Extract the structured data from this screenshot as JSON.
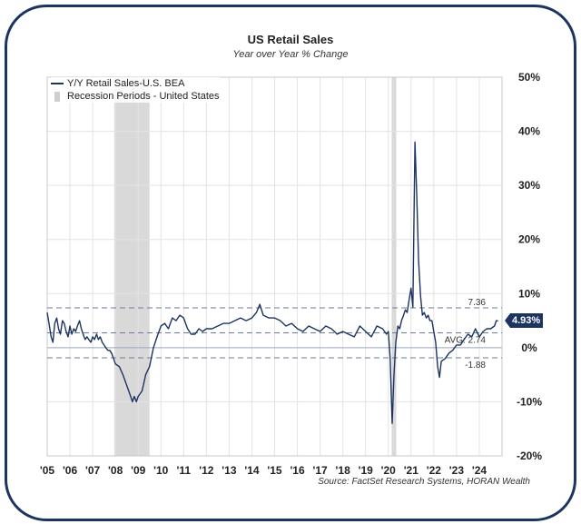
{
  "chart_data": {
    "type": "line",
    "title": "US Retail Sales",
    "subtitle": "Year over Year % Change",
    "source": "Source: FactSet Research Systems, HORAN Wealth",
    "legend": [
      "Y/Y Retail Sales-U.S. BEA",
      "Recession Periods - United States"
    ],
    "xlabel": "",
    "ylabel": "",
    "ylim": [
      -20,
      50
    ],
    "xlim": [
      2005.0,
      2025.0
    ],
    "x_ticks": [
      {
        "v": 2005,
        "label": "'05"
      },
      {
        "v": 2006,
        "label": "'06"
      },
      {
        "v": 2007,
        "label": "'07"
      },
      {
        "v": 2008,
        "label": "'08"
      },
      {
        "v": 2009,
        "label": "'09"
      },
      {
        "v": 2010,
        "label": "'10"
      },
      {
        "v": 2011,
        "label": "'11"
      },
      {
        "v": 2012,
        "label": "'12"
      },
      {
        "v": 2013,
        "label": "'13"
      },
      {
        "v": 2014,
        "label": "'14"
      },
      {
        "v": 2015,
        "label": "'15"
      },
      {
        "v": 2016,
        "label": "'16"
      },
      {
        "v": 2017,
        "label": "'17"
      },
      {
        "v": 2018,
        "label": "'18"
      },
      {
        "v": 2019,
        "label": "'19"
      },
      {
        "v": 2020,
        "label": "'20"
      },
      {
        "v": 2021,
        "label": "'21"
      },
      {
        "v": 2022,
        "label": "'22"
      },
      {
        "v": 2023,
        "label": "'23"
      },
      {
        "v": 2024,
        "label": "'24"
      }
    ],
    "y_ticks": [
      {
        "v": 50,
        "label": "50%"
      },
      {
        "v": 40,
        "label": "40%"
      },
      {
        "v": 30,
        "label": "30%"
      },
      {
        "v": 20,
        "label": "20%"
      },
      {
        "v": 10,
        "label": "10%"
      },
      {
        "v": 0,
        "label": "0%"
      },
      {
        "v": -10,
        "label": "-10%"
      },
      {
        "v": -20,
        "label": "-20%"
      }
    ],
    "recessions": [
      [
        2007.95,
        2009.5
      ],
      [
        2020.15,
        2020.35
      ]
    ],
    "reference_lines": [
      {
        "value": 7.36,
        "label": "7.36"
      },
      {
        "value": 2.74,
        "label": "AVG: 2.74"
      },
      {
        "value": -1.88,
        "label": "-1.88"
      }
    ],
    "last_value_label": "4.93%",
    "series": [
      {
        "name": "Y/Y Retail Sales-U.S. BEA",
        "x": [
          2005.0,
          2005.08,
          2005.17,
          2005.25,
          2005.33,
          2005.42,
          2005.5,
          2005.58,
          2005.67,
          2005.75,
          2005.83,
          2005.92,
          2006.0,
          2006.08,
          2006.17,
          2006.25,
          2006.33,
          2006.42,
          2006.5,
          2006.58,
          2006.67,
          2006.75,
          2006.83,
          2006.92,
          2007.0,
          2007.08,
          2007.17,
          2007.25,
          2007.33,
          2007.42,
          2007.5,
          2007.58,
          2007.67,
          2007.75,
          2007.83,
          2007.92,
          2008.0,
          2008.17,
          2008.33,
          2008.5,
          2008.67,
          2008.75,
          2008.83,
          2008.92,
          2009.0,
          2009.17,
          2009.33,
          2009.5,
          2009.67,
          2009.83,
          2010.0,
          2010.17,
          2010.33,
          2010.5,
          2010.67,
          2010.83,
          2011.0,
          2011.17,
          2011.33,
          2011.5,
          2011.67,
          2011.83,
          2012.0,
          2012.25,
          2012.5,
          2012.75,
          2013.0,
          2013.25,
          2013.5,
          2013.75,
          2014.0,
          2014.2,
          2014.35,
          2014.5,
          2014.75,
          2015.0,
          2015.25,
          2015.5,
          2015.75,
          2016.0,
          2016.25,
          2016.5,
          2016.75,
          2017.0,
          2017.25,
          2017.5,
          2017.75,
          2018.0,
          2018.25,
          2018.5,
          2018.75,
          2019.0,
          2019.25,
          2019.5,
          2019.75,
          2019.92,
          2020.0,
          2020.08,
          2020.17,
          2020.25,
          2020.33,
          2020.42,
          2020.5,
          2020.58,
          2020.67,
          2020.75,
          2020.83,
          2020.92,
          2021.0,
          2021.08,
          2021.17,
          2021.25,
          2021.33,
          2021.42,
          2021.5,
          2021.58,
          2021.67,
          2021.75,
          2021.83,
          2021.92,
          2022.0,
          2022.08,
          2022.17,
          2022.25,
          2022.33,
          2022.5,
          2022.67,
          2022.83,
          2023.0,
          2023.17,
          2023.33,
          2023.5,
          2023.67,
          2023.83,
          2024.0,
          2024.17,
          2024.33,
          2024.5,
          2024.67,
          2024.75,
          2024.83
        ],
        "values": [
          6.5,
          4.5,
          2.0,
          1.0,
          4.5,
          5.5,
          3.5,
          2.5,
          5.0,
          4.5,
          3.0,
          2.0,
          4.0,
          2.5,
          3.5,
          3.0,
          4.0,
          5.0,
          3.5,
          2.5,
          1.5,
          2.0,
          1.5,
          1.0,
          2.0,
          1.5,
          2.5,
          1.5,
          2.0,
          1.0,
          0.5,
          0.0,
          -0.5,
          -0.5,
          -1.0,
          -2.0,
          -3.0,
          -3.5,
          -5.0,
          -7.0,
          -9.0,
          -10.0,
          -9.0,
          -10.0,
          -9.0,
          -8.0,
          -5.0,
          -3.5,
          0.0,
          2.0,
          4.0,
          4.5,
          3.5,
          5.5,
          5.0,
          6.0,
          5.5,
          3.5,
          2.5,
          2.5,
          3.5,
          3.0,
          3.5,
          3.5,
          4.0,
          4.5,
          4.5,
          5.0,
          5.5,
          5.0,
          5.5,
          6.5,
          8.0,
          6.0,
          5.5,
          5.5,
          5.0,
          4.0,
          4.5,
          3.5,
          3.0,
          4.0,
          3.5,
          3.0,
          4.0,
          3.5,
          2.5,
          3.0,
          2.5,
          2.0,
          4.0,
          3.0,
          2.0,
          4.0,
          3.5,
          2.5,
          3.0,
          -2.0,
          -14.0,
          -5.0,
          1.0,
          4.0,
          3.5,
          5.0,
          6.0,
          7.0,
          6.5,
          9.0,
          11.0,
          7.5,
          38.0,
          28.0,
          16.0,
          9.5,
          6.0,
          6.5,
          5.5,
          6.0,
          5.0,
          5.0,
          3.0,
          1.0,
          -3.5,
          -5.5,
          -2.5,
          -2.0,
          -1.0,
          -0.5,
          0.5,
          0.5,
          1.5,
          2.5,
          2.0,
          3.5,
          2.0,
          3.0,
          3.5,
          3.5,
          4.0,
          5.0,
          4.93
        ]
      }
    ]
  }
}
